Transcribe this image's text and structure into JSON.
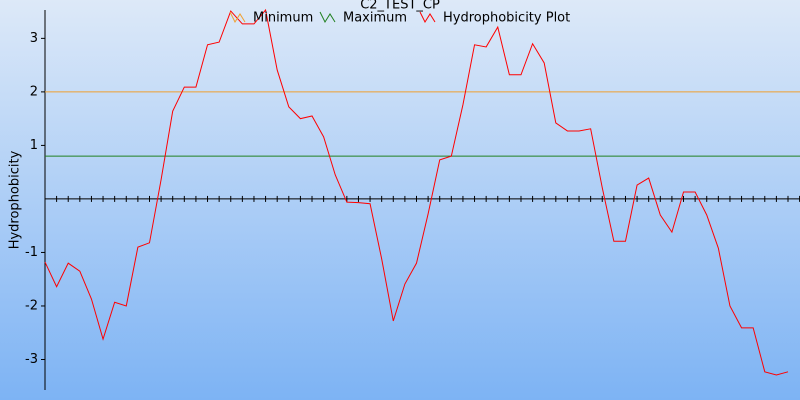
{
  "chart_data": {
    "type": "line",
    "title": "C2_TEST_CP",
    "ylabel": "Hydrophobicity",
    "ylim": [
      -3.57,
      3.53
    ],
    "yticks": [
      -3,
      -2,
      -1,
      1,
      2,
      3
    ],
    "reference_lines": [
      {
        "name": "Minimum",
        "color": "#f0a030",
        "value": 2.0
      },
      {
        "name": "Maximum",
        "color": "#208020",
        "value": 0.8
      }
    ],
    "series": [
      {
        "name": "Hydrophobicity Plot",
        "color": "#ff0000",
        "values": [
          -1.18,
          -1.64,
          -1.2,
          -1.35,
          -1.87,
          -2.62,
          -1.93,
          -2.0,
          -0.9,
          -0.82,
          0.36,
          1.64,
          2.09,
          2.09,
          2.88,
          2.93,
          3.51,
          3.27,
          3.27,
          3.53,
          2.41,
          1.72,
          1.5,
          1.55,
          1.16,
          0.45,
          -0.06,
          -0.07,
          -0.09,
          -1.12,
          -2.28,
          -1.59,
          -1.2,
          -0.28,
          0.73,
          0.8,
          1.76,
          2.88,
          2.84,
          3.21,
          2.32,
          2.32,
          2.9,
          2.54,
          1.42,
          1.27,
          1.27,
          1.31,
          0.21,
          -0.79,
          -0.79,
          0.26,
          0.39,
          -0.3,
          -0.62,
          0.13,
          0.13,
          -0.3,
          -0.92,
          -2.0,
          -2.41,
          -2.41,
          -3.23,
          -3.29,
          -3.23
        ]
      }
    ]
  }
}
